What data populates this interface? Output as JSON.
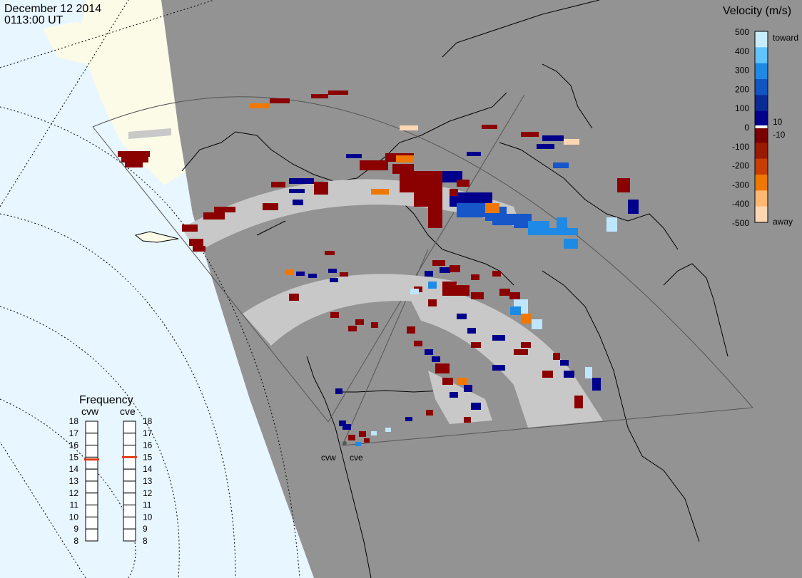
{
  "header": {
    "date": "December 12 2014",
    "time": "0113:00 UT"
  },
  "legend": {
    "title": "Velocity (m/s)",
    "ticks": [
      "500",
      "400",
      "300",
      "200",
      "100",
      "0",
      "-100",
      "-200",
      "-300",
      "-400",
      "-500"
    ],
    "label_toward": "toward",
    "label_away": "away",
    "label_pos10": "10",
    "label_neg10": "-10",
    "colors": [
      "#c8ecff",
      "#62c4ff",
      "#1f8ae6",
      "#0f56c2",
      "#0a2a96",
      "#00008c",
      "#7a0000",
      "#9a1a00",
      "#c83d00",
      "#f07800",
      "#ffb874",
      "#fcd7b4"
    ]
  },
  "frequency": {
    "title": "Frequency",
    "radars": [
      {
        "name": "cvw",
        "value": 14.8
      },
      {
        "name": "cve",
        "value": 15.0
      }
    ],
    "scale": [
      "18",
      "17",
      "16",
      "15",
      "14",
      "13",
      "12",
      "11",
      "10",
      "9",
      "8"
    ]
  },
  "radar_sites": [
    {
      "name": "cvw"
    },
    {
      "name": "cve"
    }
  ],
  "map_colors": {
    "ocean": "#e8f6ff",
    "land_daylight": "#fbfbe8",
    "night": "#939393",
    "ground_scatter": "#c8c8c8"
  }
}
